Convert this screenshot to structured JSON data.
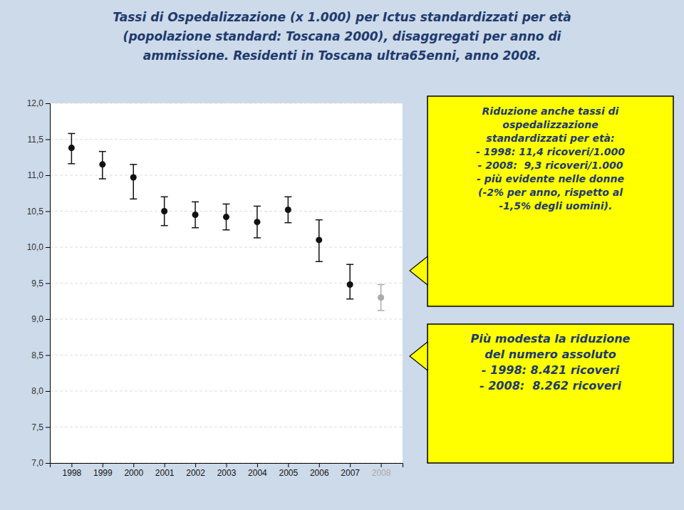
{
  "chart_data": {
    "type": "scatter",
    "title": [
      "Tassi di Ospedalizzazione (x 1.000) per Ictus standardizzati per età",
      "(popolazione standard: Toscana 2000), disaggregati per anno di",
      "ammissione. Residenti in Toscana ultra65enni, anno 2008."
    ],
    "x": [
      1998,
      1999,
      2000,
      2001,
      2002,
      2003,
      2004,
      2005,
      2006,
      2007,
      2008
    ],
    "values": [
      11.38,
      11.15,
      10.97,
      10.5,
      10.45,
      10.42,
      10.35,
      10.52,
      10.1,
      9.48,
      9.3
    ],
    "error_low": [
      0.22,
      0.2,
      0.3,
      0.2,
      0.18,
      0.18,
      0.22,
      0.18,
      0.3,
      0.2,
      0.18
    ],
    "error_high": [
      0.2,
      0.18,
      0.18,
      0.2,
      0.18,
      0.18,
      0.22,
      0.18,
      0.28,
      0.28,
      0.18
    ],
    "colors": [
      "#111111",
      "#111111",
      "#111111",
      "#111111",
      "#111111",
      "#111111",
      "#111111",
      "#111111",
      "#111111",
      "#111111",
      "#aaaaaa"
    ],
    "marker": "circle",
    "xlim": [
      1997.3,
      2008.7
    ],
    "xticks": [
      1998,
      1999,
      2000,
      2001,
      2002,
      2003,
      2004,
      2005,
      2006,
      2007,
      2008
    ],
    "ylim": [
      7.0,
      12.0
    ],
    "yticks": [
      {
        "value": 7.0,
        "label": "7,0"
      },
      {
        "value": 7.5,
        "label": "7,5"
      },
      {
        "value": 8.0,
        "label": "8,0"
      },
      {
        "value": 8.5,
        "label": "8,5"
      },
      {
        "value": 9.0,
        "label": "9,0"
      },
      {
        "value": 9.5,
        "label": "9,5"
      },
      {
        "value": 10.0,
        "label": "10,0"
      },
      {
        "value": 10.5,
        "label": "10,5"
      },
      {
        "value": 11.0,
        "label": "11,0"
      },
      {
        "value": 11.5,
        "label": "11,5"
      },
      {
        "value": 12.0,
        "label": "12,0"
      }
    ],
    "grid": true,
    "annotations": [
      "Riduzione anche tassi di\nospedalizzazione\nstandardizzati per età:\n- 1998: 11,4 ricoveri/1.000\n- 2008:  9,3 ricoveri/1.000\n- più evidente nelle donne\n(-2% per anno, rispetto al\n   -1,5% degli uomini).",
      "Più modesta la riduzione\ndel numero assoluto\n- 1998: 8.421 ricoveri\n- 2008:  8.262 ricoveri"
    ]
  }
}
